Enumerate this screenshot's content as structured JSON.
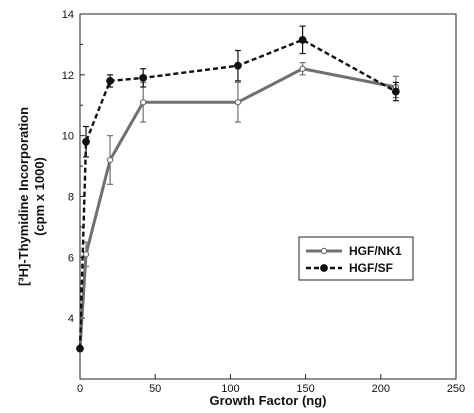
{
  "chart_data": {
    "type": "line",
    "xlabel": "Growth Factor (ng)",
    "ylabel_line1": "[³H]-Thymidine Incorporation",
    "ylabel_line2": "(cpm x 1000)",
    "xlim": [
      0,
      250
    ],
    "ylim": [
      2,
      14
    ],
    "xticks": [
      0,
      50,
      100,
      150,
      200,
      250
    ],
    "yticks": [
      4,
      6,
      8,
      10,
      12,
      14
    ],
    "grid": false,
    "legend_position": "center-right",
    "series": [
      {
        "name": "HGF/NK1",
        "color": "#707070",
        "line_style": "solid",
        "marker": "open-circle",
        "x": [
          0,
          4,
          20,
          42,
          105,
          148,
          210
        ],
        "y": [
          3.0,
          6.1,
          9.2,
          11.1,
          11.1,
          12.2,
          11.6
        ],
        "error": [
          0,
          0.4,
          0.8,
          0.65,
          0.65,
          0.2,
          0.35
        ]
      },
      {
        "name": "HGF/SF",
        "color": "#111111",
        "line_style": "dashed",
        "marker": "filled-circle",
        "x": [
          0,
          4,
          20,
          42,
          105,
          148,
          210
        ],
        "y": [
          3.0,
          9.8,
          11.8,
          11.9,
          12.3,
          13.15,
          11.45
        ],
        "error": [
          0,
          0.5,
          0.2,
          0.3,
          0.5,
          0.45,
          0.3
        ]
      }
    ]
  }
}
